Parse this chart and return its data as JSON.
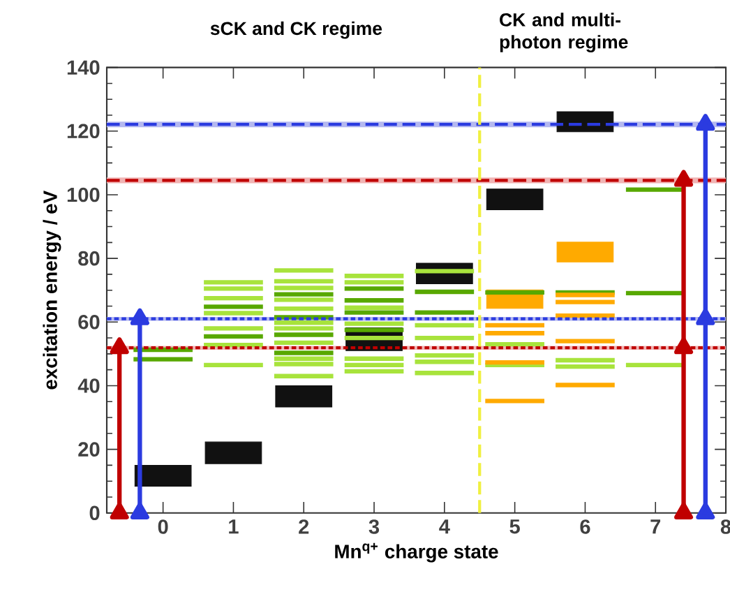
{
  "chart_data": {
    "type": "line",
    "xlabel": "Mn$^{q+}$ charge state",
    "ylabel": "excitation energy / eV",
    "annotations": [
      "sCK and CK regime",
      "CK and multi-photon regime"
    ],
    "xlim": [
      -0.8,
      8
    ],
    "ylim": [
      0,
      140
    ],
    "xticks": [
      0,
      1,
      2,
      3,
      4,
      5,
      6,
      7,
      8
    ],
    "yticks": [
      0,
      20,
      40,
      60,
      80,
      100,
      120,
      140
    ],
    "bands": [
      {
        "axis": "y",
        "from": 103.6,
        "to": 105.4,
        "color": "#f0b4b4"
      },
      {
        "axis": "y",
        "from": 121.2,
        "to": 123.0,
        "color": "#b4b8f0"
      },
      {
        "axis": "y",
        "from": 51.3,
        "to": 52.5,
        "color": "#f0b4b4"
      },
      {
        "axis": "y",
        "from": 60.4,
        "to": 61.6,
        "color": "#b4b8f0"
      }
    ],
    "ref_lines": [
      {
        "axis": "y",
        "value": 104.5,
        "color": "#c00000",
        "line_style": "dashed"
      },
      {
        "axis": "y",
        "value": 122.1,
        "color": "#2b3be0",
        "line_style": "dashed"
      },
      {
        "axis": "y",
        "value": 51.9,
        "color": "#c00000",
        "line_style": "dotted"
      },
      {
        "axis": "y",
        "value": 61.0,
        "color": "#2b3be0",
        "line_style": "dotted"
      },
      {
        "axis": "x",
        "value": 4.5,
        "color": "#f0f040",
        "line_style": "dashed"
      }
    ],
    "series": [
      {
        "type": "bar",
        "color": "#111111",
        "x": [
          0,
          1,
          2,
          3,
          4,
          5,
          6
        ],
        "base": [
          8.4,
          15.5,
          33.3,
          51,
          72,
          95.3,
          119.8
        ],
        "values": [
          6.6,
          6.8,
          6.7,
          7.2,
          6.5,
          6.5,
          6.3
        ]
      },
      {
        "type": "bar",
        "color": "#ffaa00",
        "x": [
          5,
          6
        ],
        "base": [
          64.3,
          78.9
        ],
        "values": [
          5.8,
          6.2
        ]
      },
      {
        "color": "#a8e33c",
        "x": [
          0.58,
          1.42
        ],
        "values": [
          72.5,
          72.5
        ]
      },
      {
        "color": "#a8e33c",
        "x": [
          0.58,
          1.42
        ],
        "values": [
          70.5,
          70.5
        ]
      },
      {
        "color": "#a8e33c",
        "x": [
          0.58,
          1.42
        ],
        "values": [
          67.5,
          67.5
        ]
      },
      {
        "color": "#a8e33c",
        "x": [
          0.58,
          1.42
        ],
        "values": [
          62.8,
          62.8
        ]
      },
      {
        "color": "#a8e33c",
        "x": [
          0.58,
          1.42
        ],
        "values": [
          58,
          58
        ]
      },
      {
        "color": "#a8e33c",
        "x": [
          0.58,
          1.42
        ],
        "values": [
          52.8,
          52.8
        ]
      },
      {
        "color": "#a8e33c",
        "x": [
          0.58,
          1.42
        ],
        "values": [
          46.5,
          46.5
        ]
      },
      {
        "color": "#a8e33c",
        "x": [
          1.58,
          2.42
        ],
        "values": [
          76.2,
          76.2
        ]
      },
      {
        "color": "#a8e33c",
        "x": [
          1.58,
          2.42
        ],
        "values": [
          72.8,
          72.8
        ]
      },
      {
        "color": "#a8e33c",
        "x": [
          1.58,
          2.42
        ],
        "values": [
          70.7,
          70.7
        ]
      },
      {
        "color": "#a8e33c",
        "x": [
          1.58,
          2.42
        ],
        "values": [
          67,
          67
        ]
      },
      {
        "color": "#a8e33c",
        "x": [
          1.58,
          2.42
        ],
        "values": [
          64.2,
          64.2
        ]
      },
      {
        "color": "#a8e33c",
        "x": [
          1.58,
          2.42
        ],
        "values": [
          59.8,
          59.8
        ]
      },
      {
        "color": "#a8e33c",
        "x": [
          1.58,
          2.42
        ],
        "values": [
          58,
          58
        ]
      },
      {
        "color": "#a8e33c",
        "x": [
          1.58,
          2.42
        ],
        "values": [
          53.5,
          53.5
        ]
      },
      {
        "color": "#a8e33c",
        "x": [
          1.58,
          2.42
        ],
        "values": [
          48.5,
          48.5
        ]
      },
      {
        "color": "#a8e33c",
        "x": [
          1.58,
          2.42
        ],
        "values": [
          46.8,
          46.8
        ]
      },
      {
        "color": "#a8e33c",
        "x": [
          1.58,
          2.42
        ],
        "values": [
          43,
          43
        ]
      },
      {
        "color": "#a8e33c",
        "x": [
          2.58,
          3.42
        ],
        "values": [
          74.5,
          74.5
        ]
      },
      {
        "color": "#a8e33c",
        "x": [
          2.58,
          3.42
        ],
        "values": [
          72.5,
          72.5
        ]
      },
      {
        "color": "#a8e33c",
        "x": [
          2.58,
          3.42
        ],
        "values": [
          64.5,
          64.5
        ]
      },
      {
        "color": "#a8e33c",
        "x": [
          2.58,
          3.42
        ],
        "values": [
          59.5,
          59.5
        ]
      },
      {
        "color": "#a8e33c",
        "x": [
          2.58,
          3.42
        ],
        "values": [
          55,
          55
        ]
      },
      {
        "color": "#a8e33c",
        "x": [
          2.58,
          3.42
        ],
        "values": [
          48.5,
          48.5
        ]
      },
      {
        "color": "#a8e33c",
        "x": [
          2.58,
          3.42
        ],
        "values": [
          46.5,
          46.5
        ]
      },
      {
        "color": "#a8e33c",
        "x": [
          2.58,
          3.42
        ],
        "values": [
          44.5,
          44.5
        ]
      },
      {
        "color": "#a8e33c",
        "x": [
          3.58,
          4.42
        ],
        "values": [
          76,
          76
        ]
      },
      {
        "color": "#a8e33c",
        "x": [
          3.58,
          4.42
        ],
        "values": [
          59,
          59
        ]
      },
      {
        "color": "#a8e33c",
        "x": [
          3.58,
          4.42
        ],
        "values": [
          55,
          55
        ]
      },
      {
        "color": "#a8e33c",
        "x": [
          3.58,
          4.42
        ],
        "values": [
          49.5,
          49.5
        ]
      },
      {
        "color": "#a8e33c",
        "x": [
          3.58,
          4.42
        ],
        "values": [
          47.5,
          47.5
        ]
      },
      {
        "color": "#a8e33c",
        "x": [
          3.58,
          4.42
        ],
        "values": [
          44,
          44
        ]
      },
      {
        "color": "#a8e33c",
        "x": [
          4.58,
          5.42
        ],
        "values": [
          53,
          53
        ]
      },
      {
        "color": "#a8e33c",
        "x": [
          4.58,
          5.42
        ],
        "values": [
          46.5,
          46.5
        ]
      },
      {
        "color": "#a8e33c",
        "x": [
          5.58,
          6.42
        ],
        "values": [
          48,
          48
        ]
      },
      {
        "color": "#a8e33c",
        "x": [
          5.58,
          6.42
        ],
        "values": [
          46,
          46
        ]
      },
      {
        "color": "#a8e33c",
        "x": [
          6.58,
          7.42
        ],
        "values": [
          46.5,
          46.5
        ]
      },
      {
        "color": "#58a800",
        "x": [
          -0.42,
          0.42
        ],
        "values": [
          51.3,
          51.3
        ]
      },
      {
        "color": "#58a800",
        "x": [
          -0.42,
          0.42
        ],
        "values": [
          48.3,
          48.3
        ]
      },
      {
        "color": "#58a800",
        "x": [
          0.58,
          1.42
        ],
        "values": [
          64.8,
          64.8
        ]
      },
      {
        "color": "#58a800",
        "x": [
          0.58,
          1.42
        ],
        "values": [
          55.5,
          55.5
        ]
      },
      {
        "color": "#58a800",
        "x": [
          1.58,
          2.42
        ],
        "values": [
          68.7,
          68.7
        ]
      },
      {
        "color": "#58a800",
        "x": [
          1.58,
          2.42
        ],
        "values": [
          61.5,
          61.5
        ]
      },
      {
        "color": "#58a800",
        "x": [
          1.58,
          2.42
        ],
        "values": [
          56,
          56
        ]
      },
      {
        "color": "#58a800",
        "x": [
          1.58,
          2.42
        ],
        "values": [
          50.3,
          50.3
        ]
      },
      {
        "color": "#58a800",
        "x": [
          2.58,
          3.42
        ],
        "values": [
          70.5,
          70.5
        ]
      },
      {
        "color": "#58a800",
        "x": [
          2.58,
          3.42
        ],
        "values": [
          66.8,
          66.8
        ]
      },
      {
        "color": "#58a800",
        "x": [
          2.58,
          3.42
        ],
        "values": [
          63,
          63
        ]
      },
      {
        "color": "#58a800",
        "x": [
          2.58,
          3.42
        ],
        "values": [
          57.5,
          57.5
        ]
      },
      {
        "color": "#58a800",
        "x": [
          3.58,
          4.42
        ],
        "values": [
          69.5,
          69.5
        ]
      },
      {
        "color": "#58a800",
        "x": [
          3.58,
          4.42
        ],
        "values": [
          63,
          63
        ]
      },
      {
        "color": "#58a800",
        "x": [
          4.58,
          5.42
        ],
        "values": [
          69.3,
          69.3
        ]
      },
      {
        "color": "#58a800",
        "x": [
          5.58,
          6.42
        ],
        "values": [
          69.3,
          69.3
        ]
      },
      {
        "color": "#58a800",
        "x": [
          6.58,
          7.42
        ],
        "values": [
          69.1,
          69.1
        ]
      },
      {
        "color": "#58a800",
        "x": [
          6.58,
          7.42
        ],
        "values": [
          101.6,
          101.6
        ]
      },
      {
        "color": "#ffaa00",
        "x": [
          4.58,
          5.42
        ],
        "values": [
          59,
          59
        ]
      },
      {
        "color": "#ffaa00",
        "x": [
          4.58,
          5.42
        ],
        "values": [
          56.5,
          56.5
        ]
      },
      {
        "color": "#ffaa00",
        "x": [
          4.58,
          5.42
        ],
        "values": [
          47.3,
          47.3
        ]
      },
      {
        "color": "#ffaa00",
        "x": [
          4.58,
          5.42
        ],
        "values": [
          35.2,
          35.2
        ]
      },
      {
        "color": "#ffaa00",
        "x": [
          5.58,
          6.42
        ],
        "values": [
          68.5,
          68.5
        ]
      },
      {
        "color": "#ffaa00",
        "x": [
          5.58,
          6.42
        ],
        "values": [
          66.3,
          66.3
        ]
      },
      {
        "color": "#ffaa00",
        "x": [
          5.58,
          6.42
        ],
        "values": [
          62,
          62
        ]
      },
      {
        "color": "#ffaa00",
        "x": [
          5.58,
          6.42
        ],
        "values": [
          54,
          54
        ]
      },
      {
        "color": "#ffaa00",
        "x": [
          5.58,
          6.42
        ],
        "values": [
          40.2,
          40.2
        ]
      },
      {
        "color": "#c00000",
        "marker": "triangle",
        "x": [
          -0.62,
          -0.62
        ],
        "values": [
          0,
          51.9
        ]
      },
      {
        "color": "#2b3be0",
        "marker": "triangle",
        "x": [
          -0.33,
          -0.33
        ],
        "values": [
          0,
          61.0
        ]
      },
      {
        "color": "#c00000",
        "marker": "triangle",
        "x": [
          7.4,
          7.4,
          7.4
        ],
        "values": [
          0,
          51.9,
          104.5
        ]
      },
      {
        "color": "#2b3be0",
        "marker": "triangle",
        "x": [
          7.71,
          7.71,
          7.71
        ],
        "values": [
          0,
          61.0,
          122.1
        ]
      }
    ]
  }
}
